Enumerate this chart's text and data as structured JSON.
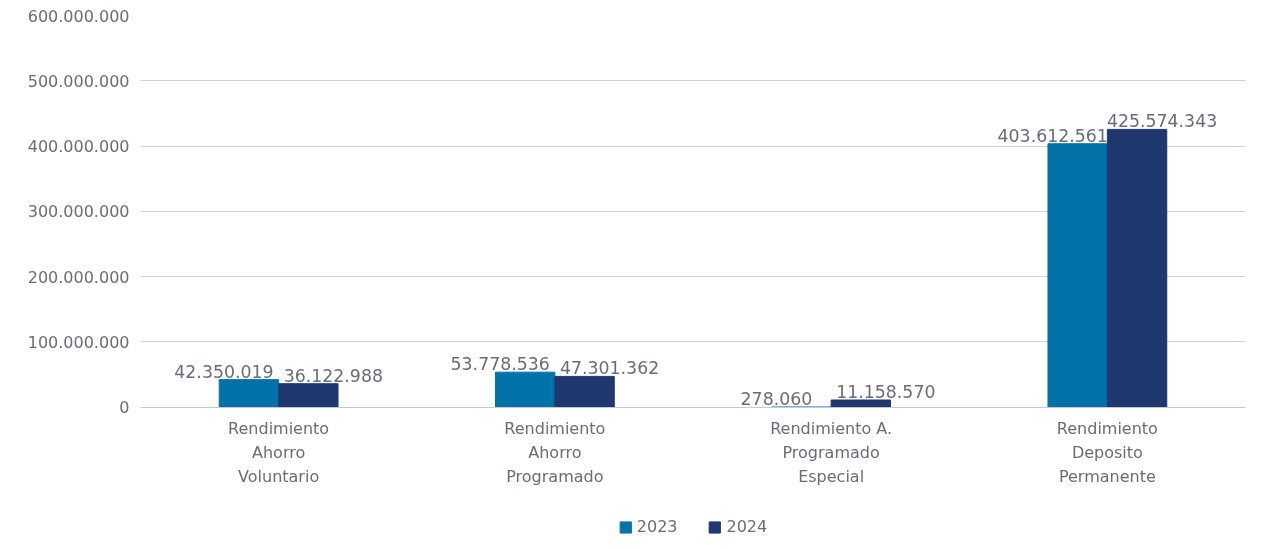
{
  "chart_data": {
    "type": "bar",
    "categories": [
      "Rendimiento\nAhorro\nVoluntario",
      "Rendimiento\nAhorro\nProgramado",
      "Rendimiento A.\nProgramado\nEspecial",
      "Rendimiento\nDeposito\nPermanente"
    ],
    "series": [
      {
        "name": "2023",
        "color": "#0072a8",
        "values": [
          42350019,
          53778536,
          278060,
          403612561
        ],
        "value_labels": [
          "42.350.019",
          "53.778.536",
          "278.060",
          "403.612.561"
        ]
      },
      {
        "name": "2024",
        "color": "#1f3870",
        "values": [
          36122988,
          47301362,
          11158570,
          425574343
        ],
        "value_labels": [
          "36.122.988",
          "47.301.362",
          "11.158.570",
          "425.574.343"
        ]
      }
    ],
    "ylim": [
      0,
      600000000
    ],
    "yticks": [
      {
        "value": 0,
        "label": "0"
      },
      {
        "value": 100000000,
        "label": "100.000.000"
      },
      {
        "value": 200000000,
        "label": "200.000.000"
      },
      {
        "value": 300000000,
        "label": "300.000.000"
      },
      {
        "value": 400000000,
        "label": "400.000.000"
      },
      {
        "value": 500000000,
        "label": "500.000.000"
      },
      {
        "value": 600000000,
        "label": "600.000.000"
      }
    ],
    "grid": "y",
    "legend": "bottom"
  }
}
